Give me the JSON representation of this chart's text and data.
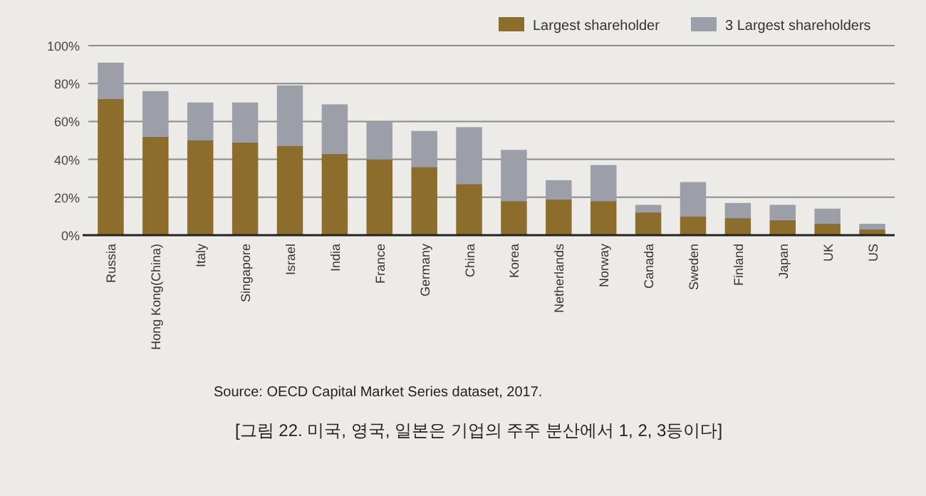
{
  "chart_data": {
    "type": "bar",
    "stacked": true,
    "categories": [
      "Russia",
      "Hong Kong(China)",
      "Italy",
      "Singapore",
      "Israel",
      "India",
      "France",
      "Germany",
      "China",
      "Korea",
      "Netherlands",
      "Norway",
      "Canada",
      "Sweden",
      "Finland",
      "Japan",
      "UK",
      "US"
    ],
    "series": [
      {
        "name": "Largest shareholder",
        "color": "#8c6d2c",
        "values": [
          72,
          52,
          50,
          49,
          47,
          43,
          40,
          36,
          27,
          18,
          19,
          18,
          12,
          10,
          9,
          8,
          6,
          3
        ]
      },
      {
        "name": "3 Largest shareholders",
        "color": "#9c9ea8",
        "values": [
          19,
          24,
          20,
          21,
          32,
          26,
          20,
          19,
          30,
          27,
          10,
          19,
          4,
          18,
          8,
          8,
          8,
          3
        ]
      }
    ],
    "ylim": [
      0,
      100
    ],
    "yticks": [
      {
        "value": 0,
        "label": "0%"
      },
      {
        "value": 20,
        "label": "20%"
      },
      {
        "value": 40,
        "label": "40%"
      },
      {
        "value": 60,
        "label": "60%"
      },
      {
        "value": 80,
        "label": "80%"
      },
      {
        "value": 100,
        "label": "100%"
      }
    ],
    "grid": "y",
    "legend": "top right",
    "annotations": [
      "Source: OECD Capital Market Series dataset, 2017.",
      "[그림 22. 미국, 영국, 일본은 기업의 주주 분산에서 1, 2, 3등이다]"
    ]
  }
}
